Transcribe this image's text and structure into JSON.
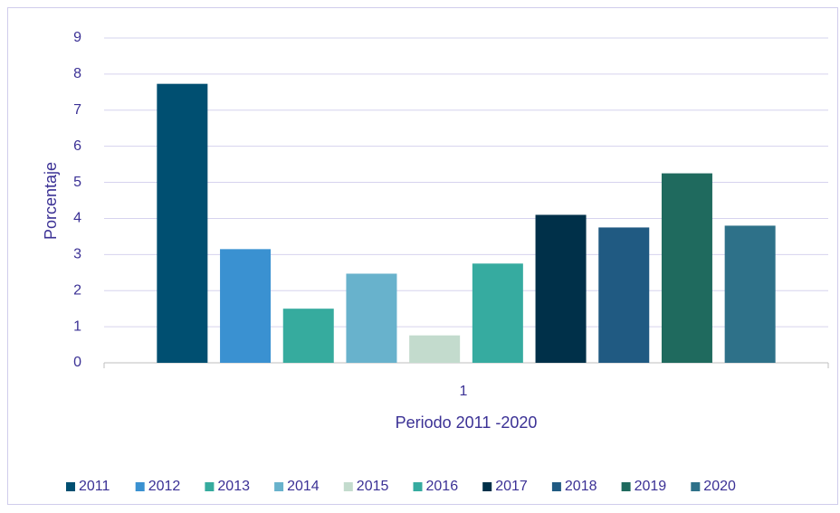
{
  "chart_data": {
    "type": "bar",
    "categories": [
      "1"
    ],
    "x_label": "Periodo 2011 -2020",
    "y_label": "Porcentaje",
    "series": [
      {
        "name": "2011",
        "color": "#004f71",
        "values": [
          7.73
        ]
      },
      {
        "name": "2012",
        "color": "#3a91d1",
        "values": [
          3.15
        ]
      },
      {
        "name": "2013",
        "color": "#36ab9e",
        "values": [
          1.5
        ]
      },
      {
        "name": "2014",
        "color": "#68b2cc",
        "values": [
          2.47
        ]
      },
      {
        "name": "2015",
        "color": "#c3dbcd",
        "values": [
          0.76
        ]
      },
      {
        "name": "2016",
        "color": "#36aba0",
        "values": [
          2.75
        ]
      },
      {
        "name": "2017",
        "color": "#003049",
        "values": [
          4.1
        ]
      },
      {
        "name": "2018",
        "color": "#205a82",
        "values": [
          3.75
        ]
      },
      {
        "name": "2019",
        "color": "#1f6a5e",
        "values": [
          5.25
        ]
      },
      {
        "name": "2020",
        "color": "#2e7189",
        "values": [
          3.8
        ]
      }
    ],
    "ylim": [
      0,
      9
    ],
    "yticks": [
      0,
      1,
      2,
      3,
      4,
      5,
      6,
      7,
      8,
      9
    ],
    "grid": true,
    "legend": "bottom"
  }
}
